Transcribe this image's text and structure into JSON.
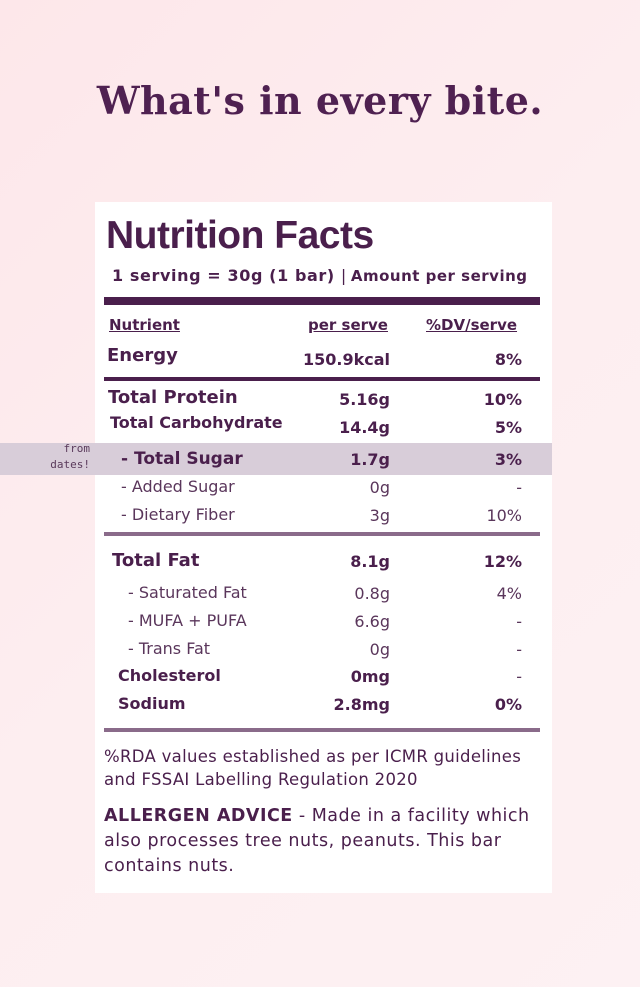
{
  "headline": "What's in every bite.",
  "label": {
    "title": "Nutrition Facts",
    "serving_size": "1 serving = 30g (1 bar)",
    "separator": "|",
    "amount_per_serving": "Amount per serving",
    "headers": {
      "nutrient": "Nutrient",
      "per_serve": "per serve",
      "dv": "%DV/serve"
    },
    "rows": [
      {
        "name": "Energy",
        "value": "150.9kcal",
        "dv": "8%"
      },
      {
        "name": "Total Protein",
        "value": "5.16g",
        "dv": "10%"
      },
      {
        "name": "Total Carbohydrate",
        "value": "14.4g",
        "dv": "5%"
      },
      {
        "name": "- Total Sugar",
        "value": "1.7g",
        "dv": "3%"
      },
      {
        "name": "- Added Sugar",
        "value": "0g",
        "dv": "-"
      },
      {
        "name": "- Dietary Fiber",
        "value": "3g",
        "dv": "10%"
      },
      {
        "name": "Total Fat",
        "value": "8.1g",
        "dv": "12%"
      },
      {
        "name": "- Saturated Fat",
        "value": "0.8g",
        "dv": "4%"
      },
      {
        "name": "- MUFA + PUFA",
        "value": "6.6g",
        "dv": "-"
      },
      {
        "name": "- Trans Fat",
        "value": "0g",
        "dv": "-"
      },
      {
        "name": "Cholesterol",
        "value": "0mg",
        "dv": "-"
      },
      {
        "name": "Sodium",
        "value": "2.8mg",
        "dv": "0%"
      }
    ],
    "sugar_note": [
      "from",
      "dates!"
    ],
    "footnote": "%RDA values established as per ICMR guidelines and FSSAI Labelling Regulation 2020",
    "allergen_label": "ALLERGEN ADVICE",
    "allergen_text": " - Made in a facility which also processes tree nuts, peanuts. This bar contains nuts."
  },
  "colors": {
    "brand": "#4a1f4c",
    "highlight": "#d8cdd9",
    "background": "#fde7ea"
  }
}
